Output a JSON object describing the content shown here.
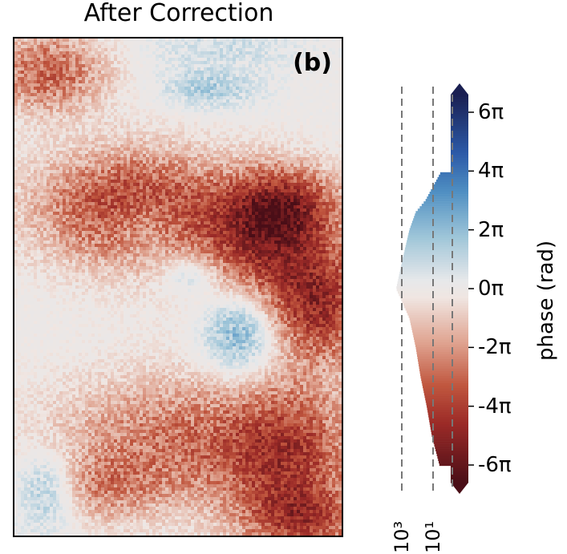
{
  "title": "After Correction",
  "panel_label": "(b)",
  "chart_data": {
    "type": "heatmap",
    "title": "After Correction",
    "colormap": "diverging red-white-blue",
    "colorbar": {
      "label": "phase (rad)",
      "range": [
        -6.6,
        6.6
      ],
      "ticks": [
        6,
        4,
        2,
        0,
        -2,
        -4,
        -6
      ],
      "tick_labels": [
        "6π",
        "4π",
        "2π",
        "0π",
        "-2π",
        "-4π",
        "-6π"
      ],
      "extend": "both"
    },
    "histogram": {
      "orientation": "horizontal",
      "x_scale": "log",
      "x_reversed": true,
      "x_tick_labels": [
        "10³",
        "10¹"
      ],
      "reference_lines": [
        "10³",
        "10¹"
      ],
      "bins": [
        {
          "phase": 4.0,
          "count": 3
        },
        {
          "phase": 3.0,
          "count": 30
        },
        {
          "phase": 2.6,
          "count": 120
        },
        {
          "phase": 2.0,
          "count": 300
        },
        {
          "phase": 1.0,
          "count": 800
        },
        {
          "phase": 0.0,
          "count": 2000
        },
        {
          "phase": -1.0,
          "count": 300
        },
        {
          "phase": -2.0,
          "count": 120
        },
        {
          "phase": -3.0,
          "count": 60
        },
        {
          "phase": -4.0,
          "count": 25
        },
        {
          "phase": -5.0,
          "count": 12
        },
        {
          "phase": -6.0,
          "count": 4
        }
      ]
    },
    "color_stops": [
      {
        "v": 6.6,
        "color": "#1a1f52"
      },
      {
        "v": 4.6,
        "color": "#2c5aa8"
      },
      {
        "v": 3.3,
        "color": "#4f8fc2"
      },
      {
        "v": 1.8,
        "color": "#9cc4d8"
      },
      {
        "v": 0.3,
        "color": "#e6e8ea"
      },
      {
        "v": -0.3,
        "color": "#f0e6e2"
      },
      {
        "v": -1.8,
        "color": "#e0a592"
      },
      {
        "v": -3.3,
        "color": "#c0563e"
      },
      {
        "v": -4.6,
        "color": "#9b2a27"
      },
      {
        "v": -6.6,
        "color": "#4a0e17"
      }
    ]
  }
}
